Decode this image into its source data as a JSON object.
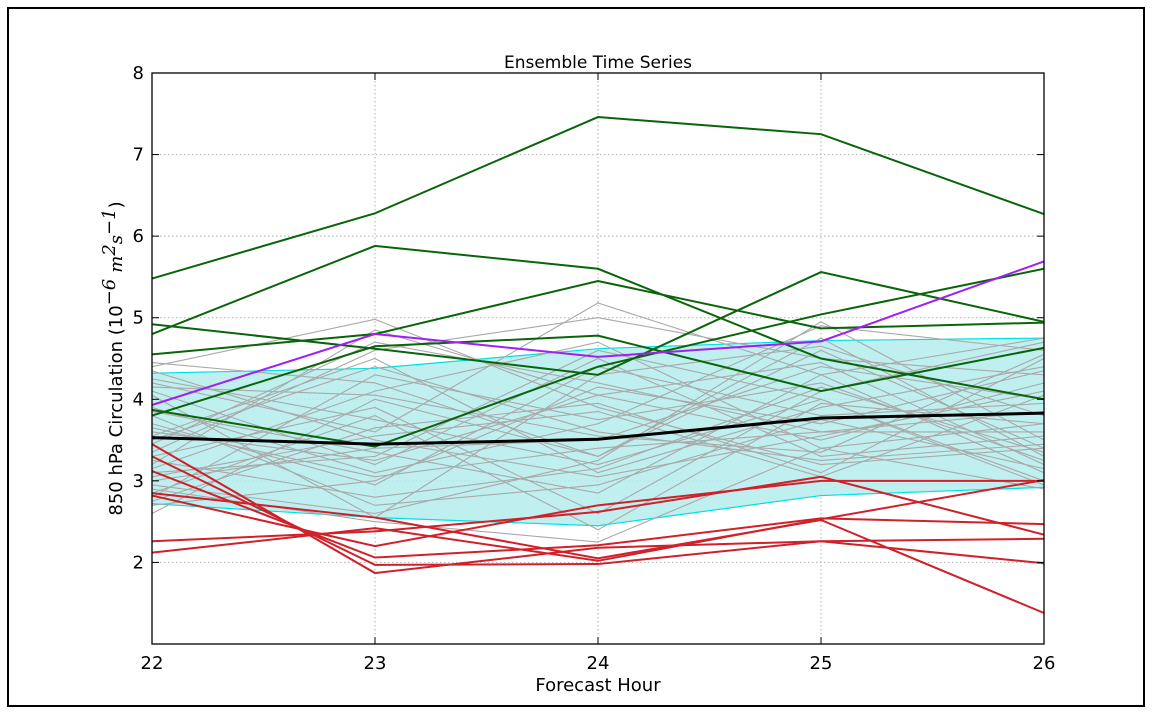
{
  "chart_data": {
    "type": "line",
    "title": "Ensemble Time Series",
    "xlabel": "Forecast Hour",
    "ylabel": {
      "prefix": "850 hPa Circulation (10",
      "exp": "−6",
      "m": "m",
      "m_exp": "2",
      "s": "s",
      "s_exp": "−1",
      "suffix": ")"
    },
    "x": [
      22,
      23,
      24,
      25,
      26
    ],
    "xlim": [
      22,
      26
    ],
    "ylim": [
      1,
      8
    ],
    "xticks": [
      "22",
      "23",
      "24",
      "25",
      "26"
    ],
    "yticks": [
      "2",
      "3",
      "4",
      "5",
      "6",
      "7",
      "8"
    ],
    "ytick_values": [
      2,
      3,
      4,
      5,
      6,
      7,
      8
    ],
    "grid": true,
    "colors": {
      "gray": "#a9a9a9",
      "green": "#0a640a",
      "red": "#d0202a",
      "purple": "#a020f0",
      "mean": "#000000",
      "band_fill": "#b4ecec",
      "band_edge": "#00e0e0"
    },
    "band": {
      "upper": [
        4.32,
        4.38,
        4.62,
        4.72,
        4.75
      ],
      "lower": [
        2.72,
        2.55,
        2.45,
        2.82,
        2.92
      ]
    },
    "gray_series": [
      [
        4.4,
        4.98,
        3.9,
        3.2,
        3.4
      ],
      [
        4.2,
        3.6,
        5.18,
        4.3,
        3.1
      ],
      [
        3.9,
        3.1,
        3.7,
        4.9,
        4.6
      ],
      [
        3.2,
        4.85,
        4.05,
        3.5,
        4.2
      ],
      [
        2.6,
        4.0,
        3.3,
        4.6,
        3.4
      ],
      [
        3.55,
        4.5,
        3.1,
        3.9,
        4.4
      ],
      [
        2.9,
        2.5,
        2.25,
        3.4,
        3.7
      ],
      [
        3.1,
        3.3,
        4.6,
        4.0,
        3.0
      ],
      [
        3.45,
        4.7,
        4.2,
        3.6,
        3.85
      ],
      [
        4.45,
        4.2,
        3.3,
        4.75,
        3.3
      ],
      [
        2.75,
        3.65,
        3.95,
        3.1,
        4.5
      ],
      [
        3.8,
        2.7,
        2.95,
        3.75,
        3.15
      ],
      [
        3.0,
        3.4,
        3.5,
        4.4,
        4.0
      ],
      [
        4.1,
        3.2,
        4.5,
        3.3,
        3.55
      ],
      [
        3.3,
        3.9,
        2.6,
        4.1,
        4.7
      ],
      [
        2.8,
        4.3,
        3.75,
        4.2,
        3.25
      ],
      [
        3.65,
        3.05,
        3.4,
        3.6,
        3.6
      ],
      [
        4.25,
        3.75,
        3.2,
        4.0,
        2.95
      ],
      [
        3.7,
        2.95,
        4.4,
        3.8,
        3.95
      ],
      [
        3.35,
        4.6,
        5.0,
        4.5,
        4.3
      ],
      [
        2.95,
        2.6,
        3.25,
        4.95,
        3.5
      ],
      [
        4.35,
        3.5,
        3.05,
        3.55,
        4.1
      ],
      [
        3.15,
        4.1,
        4.7,
        3.4,
        2.9
      ],
      [
        3.85,
        3.35,
        2.85,
        4.3,
        4.75
      ],
      [
        2.7,
        3.0,
        4.15,
        3.7,
        4.35
      ],
      [
        3.5,
        4.4,
        3.6,
        3.25,
        3.45
      ],
      [
        4.05,
        2.55,
        4.3,
        4.65,
        3.8
      ],
      [
        3.05,
        3.55,
        3.85,
        3.05,
        4.05
      ],
      [
        2.85,
        3.8,
        2.4,
        3.95,
        3.7
      ],
      [
        3.6,
        3.25,
        4.05,
        4.45,
        3.2
      ],
      [
        4.15,
        4.05,
        3.55,
        3.35,
        4.55
      ],
      [
        3.25,
        2.8,
        3.15,
        4.15,
        3.35
      ]
    ],
    "green_series": [
      [
        5.48,
        6.28,
        7.46,
        7.25,
        6.27
      ],
      [
        4.8,
        5.88,
        5.6,
        4.5,
        4.0
      ],
      [
        4.92,
        4.62,
        4.3,
        5.56,
        4.95
      ],
      [
        4.55,
        4.8,
        5.45,
        4.87,
        4.94
      ],
      [
        3.87,
        3.42,
        4.4,
        5.04,
        5.6
      ],
      [
        3.8,
        4.65,
        4.78,
        4.1,
        4.63
      ]
    ],
    "red_series": [
      [
        2.12,
        2.42,
        2.02,
        2.53,
        3.01
      ],
      [
        2.26,
        2.38,
        2.62,
        3.05,
        2.34
      ],
      [
        2.85,
        2.55,
        2.05,
        2.52,
        1.38
      ],
      [
        3.12,
        2.06,
        2.21,
        2.54,
        2.47
      ],
      [
        3.3,
        1.97,
        1.98,
        2.26,
        1.99
      ],
      [
        3.45,
        1.87,
        2.18,
        2.26,
        2.29
      ],
      [
        2.82,
        2.2,
        2.7,
        3.0,
        3.0
      ]
    ],
    "purple_series": [
      3.93,
      4.8,
      4.52,
      4.71,
      5.69
    ],
    "mean_series": [
      3.53,
      3.45,
      3.51,
      3.77,
      3.83
    ]
  }
}
